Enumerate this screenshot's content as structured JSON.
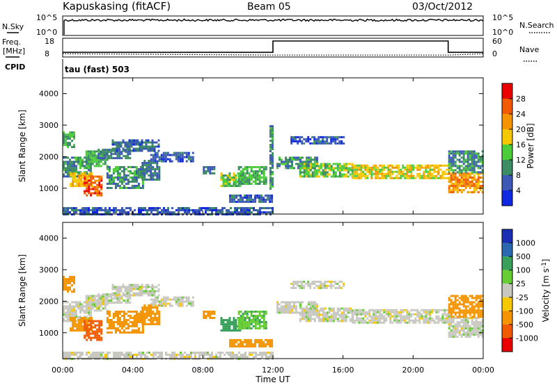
{
  "header": {
    "title": "Kapuskasing (fitACF)",
    "beam": "Beam 05",
    "date": "03/Oct/2012"
  },
  "panels": {
    "nsky_label": "N.Sky",
    "nsearch_label": "N.Search",
    "nsky_tick_high": "10^5",
    "nsky_tick_low": "10^0",
    "nsearch_tick_high": "10^5",
    "nsearch_tick_low": "10^0",
    "freq_label_1": "Freq.",
    "freq_label_2": "[MHz]",
    "freq_tick_high": "18",
    "freq_tick_low": "8",
    "nave_label": "Nave",
    "nave_tick_high": "60",
    "nave_tick_low": "0",
    "cpid_label": "CPID",
    "cpid_value": "tau (fast) 503"
  },
  "power_colorbar": {
    "title": "Power [dB]",
    "ticks": [
      "28",
      "24",
      "20",
      "16",
      "12",
      "8",
      "4"
    ],
    "colors": [
      "#e80000",
      "#f05a00",
      "#f39400",
      "#f5c800",
      "#4ccc3a",
      "#3c8c64",
      "#3c5ab4",
      "#1028e0"
    ]
  },
  "velocity_colorbar": {
    "title": "Velocity [m s",
    "title_sup": "-1",
    "title_end": "]",
    "ticks": [
      "1000",
      "500",
      "100",
      "25",
      "-25",
      "-100",
      "-500",
      "-1000"
    ],
    "colors": [
      "#1a2eb4",
      "#2c68b0",
      "#38a05a",
      "#66cc33",
      "#c8c8c0",
      "#f6c800",
      "#f39400",
      "#f05a00",
      "#e80000"
    ]
  },
  "chart_data": [
    {
      "type": "heatmap",
      "name": "power",
      "ylabel": "Slant Range [km]",
      "ylim": [
        180,
        4500
      ],
      "yticks": [
        "4000",
        "3000",
        "2000",
        "1000"
      ],
      "xlim": [
        0,
        24
      ],
      "xticks": [
        "00:00",
        "04:00",
        "08:00",
        "12:00",
        "16:00",
        "20:00",
        "00:00"
      ],
      "blobs": [
        {
          "t0": 0.0,
          "t1": 1.6,
          "r0": 1400,
          "r1": 2000,
          "v": 10
        },
        {
          "t0": 0.0,
          "t1": 0.6,
          "r0": 2300,
          "r1": 2800,
          "v": 12
        },
        {
          "t0": 0.4,
          "t1": 1.7,
          "r0": 1100,
          "r1": 1500,
          "v": 20
        },
        {
          "t0": 1.2,
          "t1": 2.2,
          "r0": 800,
          "r1": 1400,
          "v": 26
        },
        {
          "t0": 1.3,
          "t1": 2.6,
          "r0": 1700,
          "r1": 2200,
          "v": 12
        },
        {
          "t0": 2.0,
          "t1": 3.8,
          "r0": 1950,
          "r1": 2250,
          "v": 8
        },
        {
          "t0": 2.8,
          "t1": 5.5,
          "r0": 2200,
          "r1": 2550,
          "v": 7
        },
        {
          "t0": 5.0,
          "t1": 7.5,
          "r0": 1850,
          "r1": 2150,
          "v": 6
        },
        {
          "t0": 2.5,
          "t1": 4.6,
          "r0": 1000,
          "r1": 1700,
          "v": 10
        },
        {
          "t0": 4.5,
          "t1": 5.5,
          "r0": 1300,
          "r1": 1900,
          "v": 8
        },
        {
          "t0": 8.0,
          "t1": 8.7,
          "r0": 1500,
          "r1": 1700,
          "v": 8
        },
        {
          "t0": 9.0,
          "t1": 10.3,
          "r0": 1100,
          "r1": 1500,
          "v": 14
        },
        {
          "t0": 10.0,
          "t1": 11.6,
          "r0": 1150,
          "r1": 1700,
          "v": 12
        },
        {
          "t0": 9.5,
          "t1": 11.9,
          "r0": 550,
          "r1": 800,
          "v": 6
        },
        {
          "t0": 11.8,
          "t1": 12.0,
          "r0": 1000,
          "r1": 3000,
          "v": 10
        },
        {
          "t0": 12.2,
          "t1": 14.5,
          "r0": 1650,
          "r1": 2000,
          "v": 10
        },
        {
          "t0": 13.5,
          "t1": 16.5,
          "r0": 1400,
          "r1": 1800,
          "v": 14
        },
        {
          "t0": 16.5,
          "t1": 22.0,
          "r0": 1350,
          "r1": 1750,
          "v": 18
        },
        {
          "t0": 13.0,
          "t1": 16.0,
          "r0": 2450,
          "r1": 2650,
          "v": 6
        },
        {
          "t0": 22.0,
          "t1": 24.0,
          "r0": 900,
          "r1": 1500,
          "v": 22
        },
        {
          "t0": 22.0,
          "t1": 24.0,
          "r0": 1500,
          "r1": 2200,
          "v": 10
        },
        {
          "t0": 0.0,
          "t1": 12.0,
          "r0": 200,
          "r1": 400,
          "v": 6
        }
      ]
    },
    {
      "type": "heatmap",
      "name": "velocity",
      "ylabel": "Slant Range [km]",
      "ylim": [
        180,
        4500
      ],
      "yticks": [
        "4000",
        "3000",
        "2000",
        "1000"
      ],
      "xlim": [
        0,
        24
      ],
      "xticks": [
        "00:00",
        "04:00",
        "08:00",
        "12:00",
        "16:00",
        "20:00",
        "00:00"
      ],
      "xlabel": "Time UT",
      "blobs": [
        {
          "t0": 0.0,
          "t1": 1.6,
          "r0": 1400,
          "r1": 2000,
          "v": 0
        },
        {
          "t0": 0.0,
          "t1": 0.6,
          "r0": 2300,
          "r1": 2800,
          "v": -400
        },
        {
          "t0": 0.4,
          "t1": 1.7,
          "r0": 1100,
          "r1": 1500,
          "v": -300
        },
        {
          "t0": 1.2,
          "t1": 2.2,
          "r0": 800,
          "r1": 1400,
          "v": -600
        },
        {
          "t0": 1.3,
          "t1": 2.6,
          "r0": 1700,
          "r1": 2200,
          "v": 0
        },
        {
          "t0": 2.0,
          "t1": 3.8,
          "r0": 1950,
          "r1": 2250,
          "v": 0
        },
        {
          "t0": 2.8,
          "t1": 5.5,
          "r0": 2200,
          "r1": 2550,
          "v": 0
        },
        {
          "t0": 5.0,
          "t1": 7.5,
          "r0": 1850,
          "r1": 2150,
          "v": 0
        },
        {
          "t0": 2.5,
          "t1": 4.6,
          "r0": 1000,
          "r1": 1700,
          "v": -200
        },
        {
          "t0": 4.5,
          "t1": 5.5,
          "r0": 1300,
          "r1": 1900,
          "v": -150
        },
        {
          "t0": 8.0,
          "t1": 8.7,
          "r0": 1500,
          "r1": 1700,
          "v": -300
        },
        {
          "t0": 9.0,
          "t1": 10.3,
          "r0": 1100,
          "r1": 1500,
          "v": 300
        },
        {
          "t0": 10.0,
          "t1": 11.6,
          "r0": 1150,
          "r1": 1700,
          "v": 80
        },
        {
          "t0": 9.5,
          "t1": 11.9,
          "r0": 550,
          "r1": 800,
          "v": -150
        },
        {
          "t0": 12.2,
          "t1": 14.5,
          "r0": 1650,
          "r1": 2000,
          "v": 0
        },
        {
          "t0": 13.5,
          "t1": 16.5,
          "r0": 1400,
          "r1": 1800,
          "v": 0
        },
        {
          "t0": 16.5,
          "t1": 22.0,
          "r0": 1350,
          "r1": 1750,
          "v": 0
        },
        {
          "t0": 13.0,
          "t1": 16.0,
          "r0": 2450,
          "r1": 2650,
          "v": 0
        },
        {
          "t0": 22.0,
          "t1": 24.0,
          "r0": 900,
          "r1": 1500,
          "v": 0
        },
        {
          "t0": 22.0,
          "t1": 24.0,
          "r0": 1500,
          "r1": 2200,
          "v": -150
        },
        {
          "t0": 0.0,
          "t1": 12.0,
          "r0": 200,
          "r1": 400,
          "v": 0
        }
      ]
    }
  ],
  "freq_series": {
    "x": [
      0,
      12,
      12,
      22,
      22,
      24
    ],
    "y": [
      10.5,
      10.5,
      16.5,
      16.5,
      10.5,
      10.5
    ]
  },
  "nave_series": {
    "x": [
      0,
      12,
      22,
      24
    ],
    "y": [
      8,
      4,
      4,
      8
    ]
  }
}
